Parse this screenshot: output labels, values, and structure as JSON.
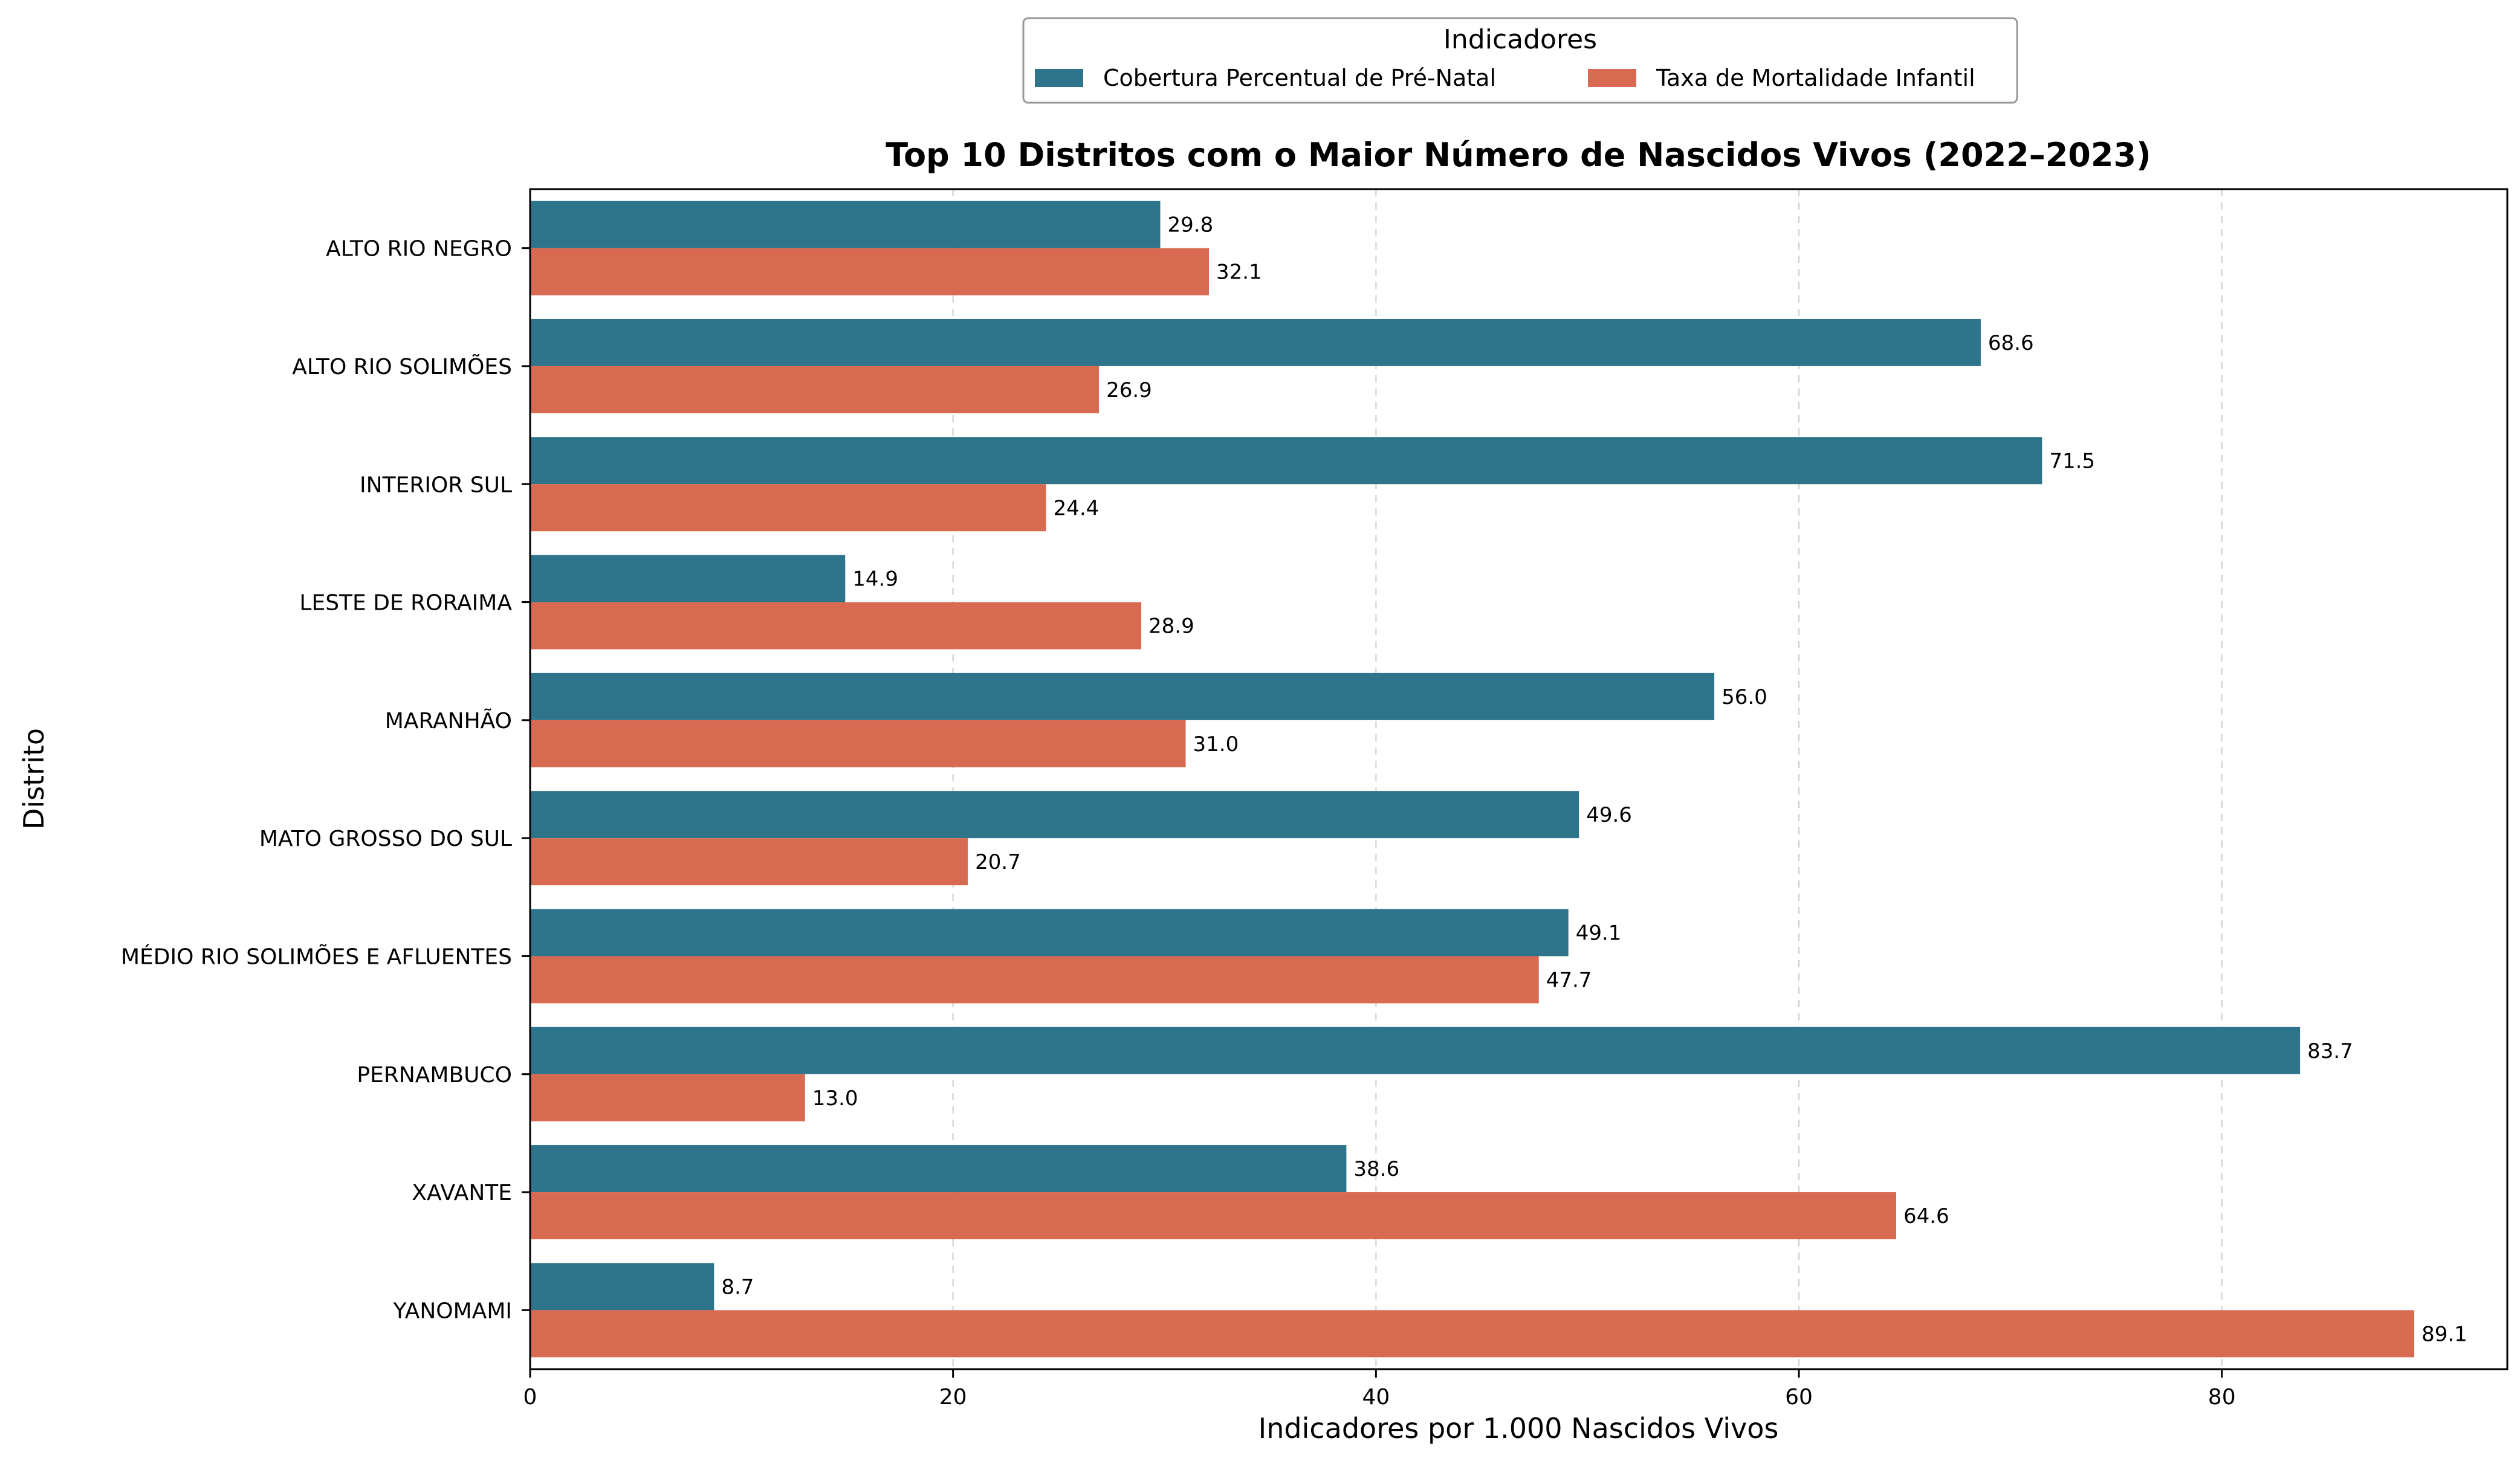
{
  "chart_data": {
    "type": "bar",
    "orientation": "horizontal",
    "title": "Top 10 Distritos com o Maior Número de Nascidos Vivos (2022–2023)",
    "xlabel": "Indicadores por 1.000 Nascidos Vivos",
    "ylabel": "Distrito",
    "xlim": [
      0,
      93.5
    ],
    "xticks": [
      0,
      20,
      40,
      60,
      80
    ],
    "grid": "vertical dashed",
    "legend": {
      "title": "Indicadores",
      "placement": "top-center"
    },
    "categories": [
      "ALTO RIO NEGRO",
      "ALTO RIO SOLIMÕES",
      "INTERIOR SUL",
      "LESTE DE RORAIMA",
      "MARANHÃO",
      "MATO GROSSO DO SUL",
      "MÉDIO RIO SOLIMÕES E AFLUENTES",
      "PERNAMBUCO",
      "XAVANTE",
      "YANOMAMI"
    ],
    "series": [
      {
        "name": "Cobertura Percentual de Pré-Natal",
        "color": "#2e758c",
        "values": [
          29.8,
          68.6,
          71.5,
          14.9,
          56.0,
          49.6,
          49.1,
          83.7,
          38.6,
          8.7
        ]
      },
      {
        "name": "Taxa de Mortalidade Infantil",
        "color": "#d86a51",
        "values": [
          32.1,
          26.9,
          24.4,
          28.9,
          31.0,
          20.7,
          47.7,
          13.0,
          64.6,
          89.1
        ]
      }
    ]
  }
}
